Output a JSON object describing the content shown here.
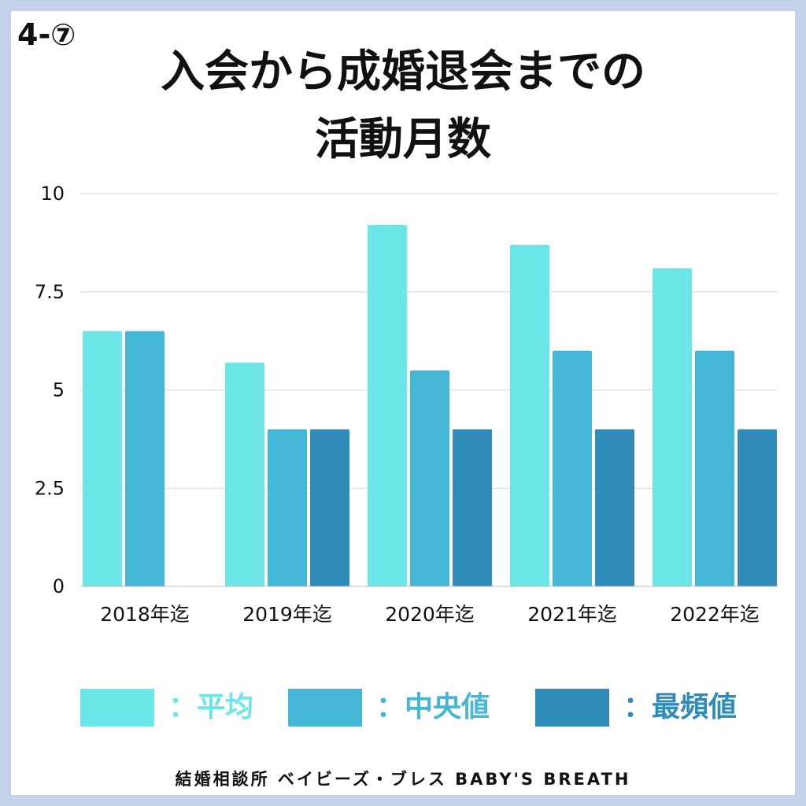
{
  "badge": "4-⑦",
  "title_line1": "入会から成婚退会までの",
  "title_line2": "活動月数",
  "colors": {
    "frame": "#c3d2ea",
    "mean": "#6ce6e8",
    "median": "#44b6d6",
    "mode": "#2f8bb8",
    "grid": "#d6d6d6",
    "text": "#111111"
  },
  "legend": [
    {
      "label": "：平均",
      "color": "#6ce6e8"
    },
    {
      "label": "：中央値",
      "color": "#44b6d6"
    },
    {
      "label": "：最頻値",
      "color": "#2f8bb8"
    }
  ],
  "chart_data": {
    "type": "bar",
    "categories": [
      "2018年迄",
      "2019年迄",
      "2020年迄",
      "2021年迄",
      "2022年迄"
    ],
    "series": [
      {
        "name": "平均",
        "values": [
          6.5,
          5.7,
          9.2,
          8.7,
          8.1
        ],
        "color": "#6ce6e8"
      },
      {
        "name": "中央値",
        "values": [
          6.5,
          4,
          5.5,
          6,
          6
        ],
        "color": "#44b6d6"
      },
      {
        "name": "最頻値",
        "values": [
          null,
          4,
          4,
          4,
          4
        ],
        "color": "#2f8bb8"
      }
    ],
    "yticks": [
      "0",
      "2.5",
      "5",
      "7.5",
      "10"
    ],
    "ylim": [
      0,
      10
    ],
    "grid": true,
    "legend_position": "bottom"
  },
  "footer": "結婚相談所 ベイビーズ・ブレス BABY'S BREATH"
}
